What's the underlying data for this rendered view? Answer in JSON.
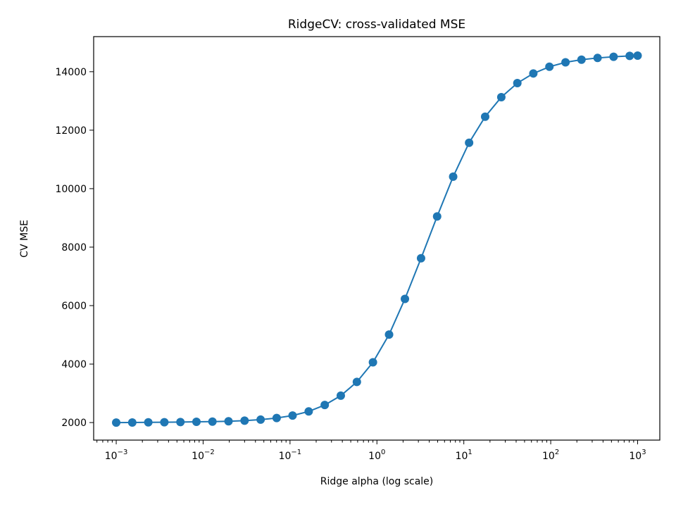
{
  "chart_data": {
    "type": "line",
    "title": "RidgeCV: cross-validated MSE",
    "xlabel": "Ridge alpha (log scale)",
    "ylabel": "CV MSE",
    "xscale": "log",
    "xlim": [
      0.00055,
      1800
    ],
    "ylim": [
      1400,
      15200
    ],
    "grid": false,
    "legend": "none",
    "marker": "circle",
    "x_ticks": [
      {
        "value": 0.001,
        "base": "10",
        "exp": "−3"
      },
      {
        "value": 0.01,
        "base": "10",
        "exp": "−2"
      },
      {
        "value": 0.1,
        "base": "10",
        "exp": "−1"
      },
      {
        "value": 1,
        "base": "10",
        "exp": "0"
      },
      {
        "value": 10,
        "base": "10",
        "exp": "1"
      },
      {
        "value": 100,
        "base": "10",
        "exp": "2"
      },
      {
        "value": 1000,
        "base": "10",
        "exp": "3"
      }
    ],
    "y_ticks": [
      2000,
      4000,
      6000,
      8000,
      10000,
      12000,
      14000
    ],
    "series": [
      {
        "color": "#1f77b4",
        "x": [
          0.001,
          0.00153,
          0.00234,
          0.00358,
          0.00548,
          0.00838,
          0.0128,
          0.0196,
          0.03,
          0.0459,
          0.0702,
          0.107,
          0.164,
          0.251,
          0.384,
          0.588,
          0.9,
          1.38,
          2.1,
          3.22,
          4.93,
          7.54,
          11.5,
          17.6,
          27,
          41.3,
          63.1,
          96.6,
          148,
          226,
          346,
          529,
          810,
          1000
        ],
        "y": [
          2000,
          2003,
          2007,
          2012,
          2018,
          2025,
          2033,
          2045,
          2065,
          2100,
          2155,
          2240,
          2380,
          2600,
          2920,
          3390,
          4060,
          5010,
          6230,
          7620,
          9050,
          10410,
          11570,
          12460,
          13130,
          13610,
          13940,
          14170,
          14320,
          14410,
          14470,
          14510,
          14540,
          14550
        ]
      }
    ]
  }
}
